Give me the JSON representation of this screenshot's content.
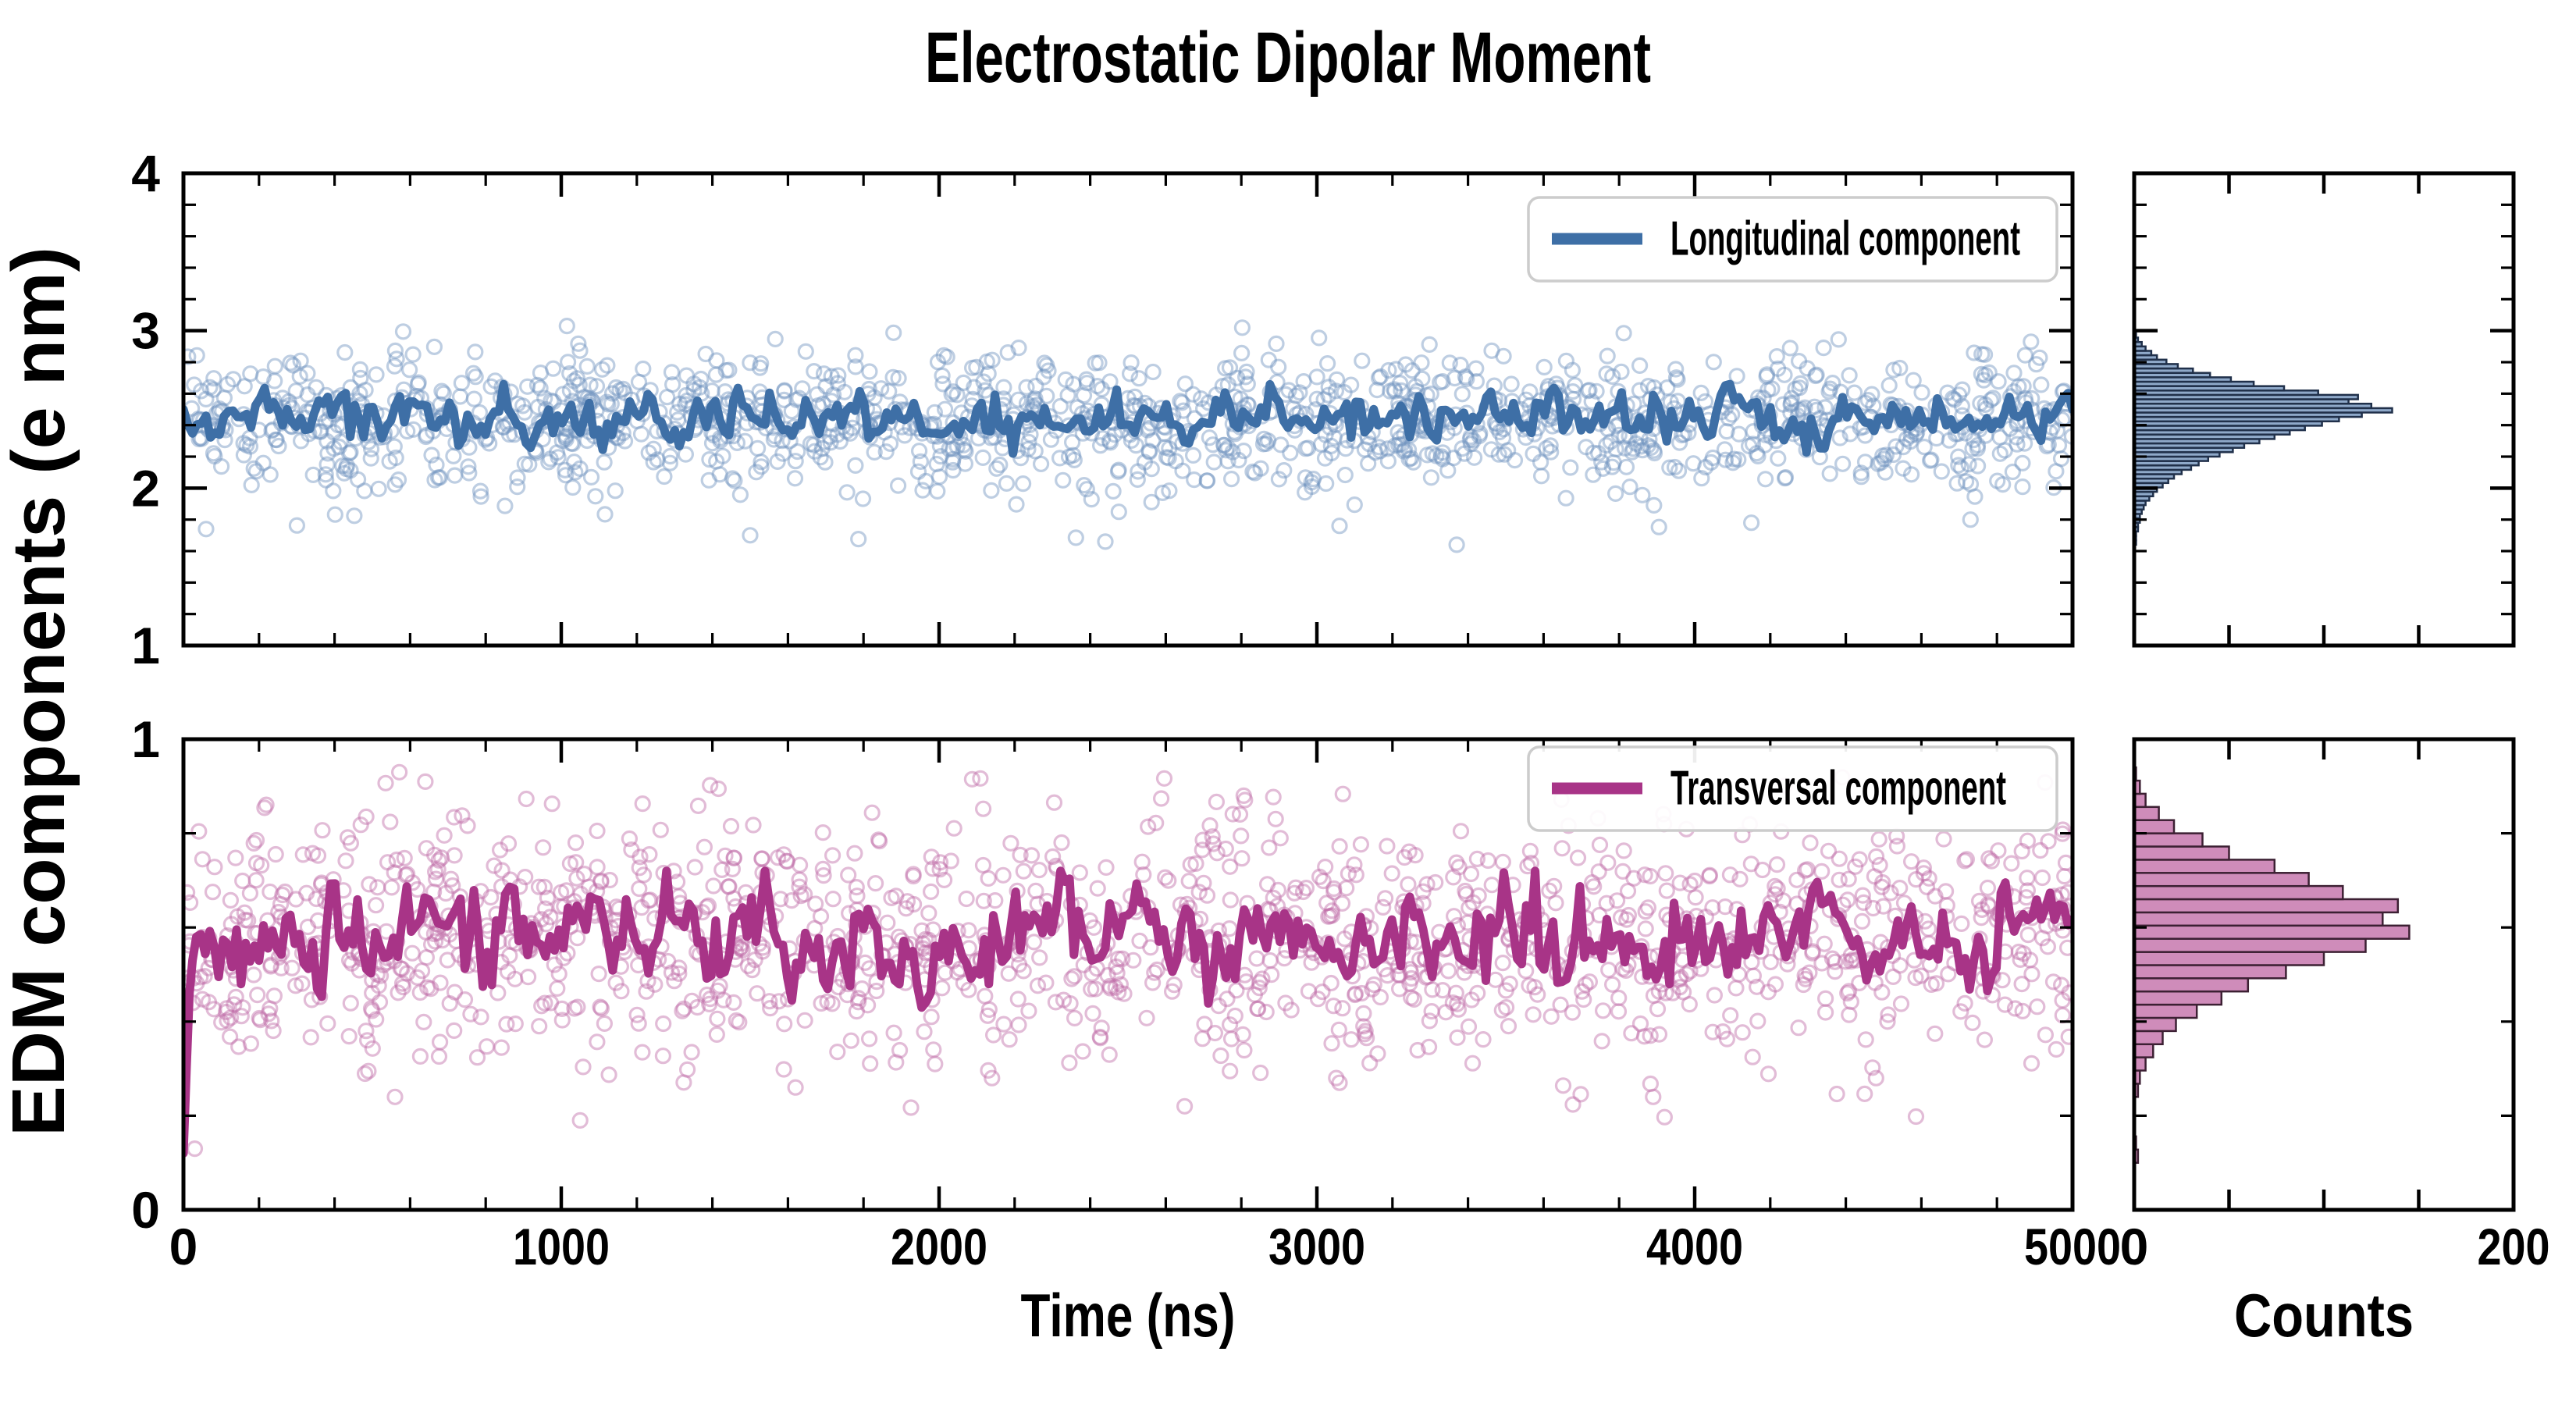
{
  "figure": {
    "title": "Electrostatic Dipolar Moment",
    "xlabel": "Time (ns)",
    "ylabel": "EDM components (e nm)",
    "counts_label": "Counts",
    "background": "#ffffff",
    "spine_color": "#000000",
    "legend_border_color": "#cccccc"
  },
  "chart_data": [
    {
      "id": "longitudinal",
      "type": "scatter",
      "legend": "Longitudinal component",
      "panel": "top",
      "line_color": "#3e6fa6",
      "marker_color": "#6e93bf",
      "marker_opacity": 0.45,
      "hist_fill": "#8fa9c9",
      "hist_edge": "#20304a",
      "x_range": [
        0,
        5000
      ],
      "y_range": [
        1,
        4
      ],
      "y_tick_labels": [
        "1",
        "2",
        "3",
        "4"
      ],
      "y_minor_step": 0.2,
      "scatter": {
        "n": 1400,
        "mean": 2.43,
        "sd": 0.22,
        "clip": [
          1.6,
          3.04
        ],
        "seed": 101,
        "outliers": [
          [
            1015,
            3.03
          ],
          [
            60,
            1.74
          ],
          [
            1500,
            1.7
          ],
          [
            2440,
            1.66
          ],
          [
            3370,
            1.64
          ],
          [
            3060,
            1.76
          ],
          [
            4150,
            1.78
          ],
          [
            4730,
            1.8
          ],
          [
            4890,
            2.93
          ]
        ]
      },
      "mean_line": {
        "n": 420,
        "mean": 2.44,
        "start": 2.55,
        "ar": 0.45,
        "sd": 0.075,
        "clip": [
          2.22,
          2.66
        ],
        "seed": 7,
        "transient": []
      },
      "histogram": {
        "bin_start": 1.64,
        "bin_width": 0.028,
        "peak_count": 136,
        "counts": [
          1,
          1,
          1,
          2,
          2,
          3,
          3,
          4,
          5,
          6,
          8,
          10,
          12,
          15,
          18,
          21,
          25,
          30,
          34,
          39,
          45,
          52,
          58,
          66,
          74,
          82,
          90,
          99,
          108,
          120,
          136,
          125,
          113,
          118,
          97,
          79,
          63,
          51,
          40,
          31,
          23,
          17,
          12,
          9,
          6,
          4,
          2,
          1
        ]
      }
    },
    {
      "id": "transversal",
      "type": "scatter",
      "legend": "Transversal component",
      "panel": "bottom",
      "line_color": "#a83487",
      "marker_color": "#bf6ba6",
      "marker_opacity": 0.45,
      "hist_fill": "#cf8cba",
      "hist_edge": "#3c2033",
      "x_range": [
        0,
        5000
      ],
      "y_range": [
        0,
        1
      ],
      "y_tick_labels": [
        "0",
        "1"
      ],
      "y_minor_step": 0.2,
      "scatter": {
        "n": 1400,
        "mean": 0.57,
        "sd": 0.135,
        "clip": [
          0.17,
          0.93
        ],
        "seed": 202,
        "outliers": [
          [
            30,
            0.13
          ],
          [
            1050,
            0.19
          ],
          [
            560,
            0.24
          ],
          [
            1620,
            0.26
          ],
          [
            2140,
            0.28
          ],
          [
            3060,
            0.27
          ],
          [
            2650,
            0.22
          ],
          [
            3890,
            0.24
          ],
          [
            4480,
            0.28
          ]
        ]
      },
      "mean_line": {
        "n": 420,
        "mean": 0.567,
        "start": 0.55,
        "ar": 0.45,
        "sd": 0.052,
        "clip": [
          0.4,
          0.72
        ],
        "seed": 9,
        "transient": [
          [
            0,
            0.12
          ],
          [
            8,
            0.3
          ],
          [
            16,
            0.46
          ],
          [
            24,
            0.53
          ]
        ]
      },
      "histogram": {
        "bin_start": 0.1,
        "bin_width": 0.028,
        "peak_count": 145,
        "counts": [
          2,
          1,
          0,
          0,
          0,
          2,
          3,
          6,
          10,
          15,
          22,
          33,
          46,
          60,
          80,
          100,
          122,
          145,
          131,
          139,
          110,
          92,
          74,
          50,
          36,
          21,
          13,
          6,
          3,
          1
        ]
      }
    }
  ],
  "axes": {
    "x_major_ticks": [
      0,
      1000,
      2000,
      3000,
      4000,
      5000
    ],
    "x_major_labels": [
      "0",
      "1000",
      "2000",
      "3000",
      "4000",
      "5000"
    ],
    "x_minor_step": 200,
    "counts_range": [
      0,
      200
    ],
    "counts_interior_ticks": [
      50,
      100,
      150
    ],
    "counts_labels": [
      "0",
      "200"
    ],
    "ticks_direction": "in"
  }
}
